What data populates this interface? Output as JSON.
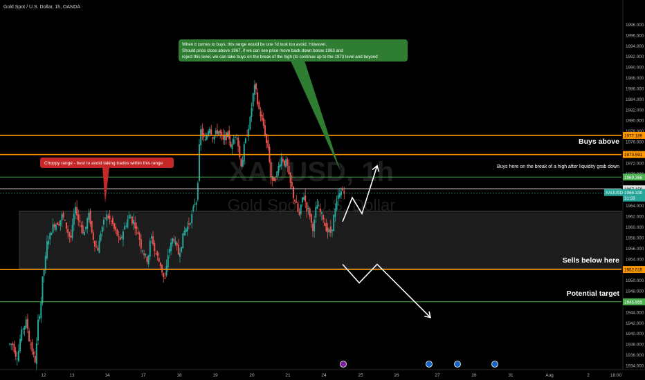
{
  "header": {
    "symbol_title": "Gold Spot / U.S. Dollar, 1h, OANDA"
  },
  "watermark": {
    "ticker": "XAUUSD, 1h",
    "name": "Gold Spot / U.S. Dollar"
  },
  "annotations": {
    "green_note_line1": "When it comes to buys, this range would be one I'd look too avoid. However,",
    "green_note_line2": "Should price close above 1967, if we can see price move back down below 1963 and",
    "green_note_line3": "reject this level, we can take buys on the break of the high (to continue up to the 1973 level and beyond",
    "red_note": "Choppy range - best to avoid taking trades within this range",
    "buys_above": "Buys above",
    "buys_here": "Buys here on the break of a high after liquidity grab down",
    "sells_below": "Sells below here",
    "potential_target": "Potential target"
  },
  "price_badges": {
    "orange_top": "1977.189",
    "orange_mid": "1973.591",
    "green_high": "1969.366",
    "white_line": "1967.159",
    "current_ticker": "XAUUSD",
    "current_price": "1966.330",
    "countdown": "31:59",
    "orange_low": "1952.015",
    "green_low": "1945.955"
  },
  "colors": {
    "background": "#000000",
    "up": "#26a69a",
    "down": "#ef5350",
    "orange": "#ff9800",
    "green_line": "#4caf50",
    "note_green": "#2e7d32",
    "note_red": "#c62828"
  },
  "events": [
    "flag-icon",
    "flag-icon",
    "flag-icon",
    "lightning-icon"
  ],
  "chart_data": {
    "type": "candlestick",
    "title": "Gold Spot / U.S. Dollar, 1h, OANDA",
    "ylim": [
      1934,
      2000
    ],
    "y_ticks": [
      "1998.000",
      "1996.000",
      "1994.000",
      "1992.000",
      "1990.000",
      "1988.000",
      "1986.000",
      "1984.000",
      "1982.000",
      "1980.000",
      "1978.000",
      "1976.000",
      "1974.000",
      "1972.000",
      "1970.000",
      "1966.000",
      "1964.000",
      "1962.000",
      "1960.000",
      "1958.000",
      "1956.000",
      "1954.000",
      "1952.000",
      "1950.000",
      "1948.000",
      "1946.000",
      "1944.000",
      "1942.000",
      "1940.000",
      "1938.000",
      "1936.000",
      "1934.000"
    ],
    "x_ticks": [
      "12",
      "13",
      "14",
      "17",
      "18",
      "19",
      "20",
      "21",
      "24",
      "25",
      "26",
      "27",
      "28",
      "31",
      "Aug",
      "2",
      "18:00"
    ],
    "levels": [
      {
        "price": 1977.189,
        "color": "orange"
      },
      {
        "price": 1973.591,
        "color": "orange"
      },
      {
        "price": 1969.366,
        "color": "green"
      },
      {
        "price": 1967.159,
        "color": "white"
      },
      {
        "price": 1952.015,
        "color": "orange"
      },
      {
        "price": 1945.955,
        "color": "green"
      }
    ],
    "range_box": {
      "top": 1963.0,
      "bottom": 1952.2
    },
    "price_path": [
      1938,
      1936,
      1940,
      1942,
      1938,
      1935,
      1944,
      1952,
      1958,
      1960,
      1961,
      1962,
      1960,
      1958,
      1963,
      1961,
      1959,
      1962,
      1958,
      1956,
      1960,
      1962,
      1961,
      1959,
      1957,
      1960,
      1962,
      1961,
      1959,
      1956,
      1954,
      1958,
      1955,
      1953,
      1950,
      1956,
      1958,
      1955,
      1958,
      1960,
      1962,
      1965,
      1978,
      1976,
      1979,
      1977,
      1978,
      1976,
      1977,
      1975,
      1978,
      1972,
      1976,
      1980,
      1986,
      1982,
      1979,
      1975,
      1968,
      1970,
      1973,
      1972,
      1968,
      1965,
      1962,
      1966,
      1963,
      1960,
      1964,
      1962,
      1960,
      1959,
      1963,
      1966,
      1967
    ],
    "projections": {
      "up_path": [
        1961,
        1965.5,
        1962.5,
        1971.5
      ],
      "down_path": [
        1953,
        1949.5,
        1953,
        1943
      ]
    }
  }
}
